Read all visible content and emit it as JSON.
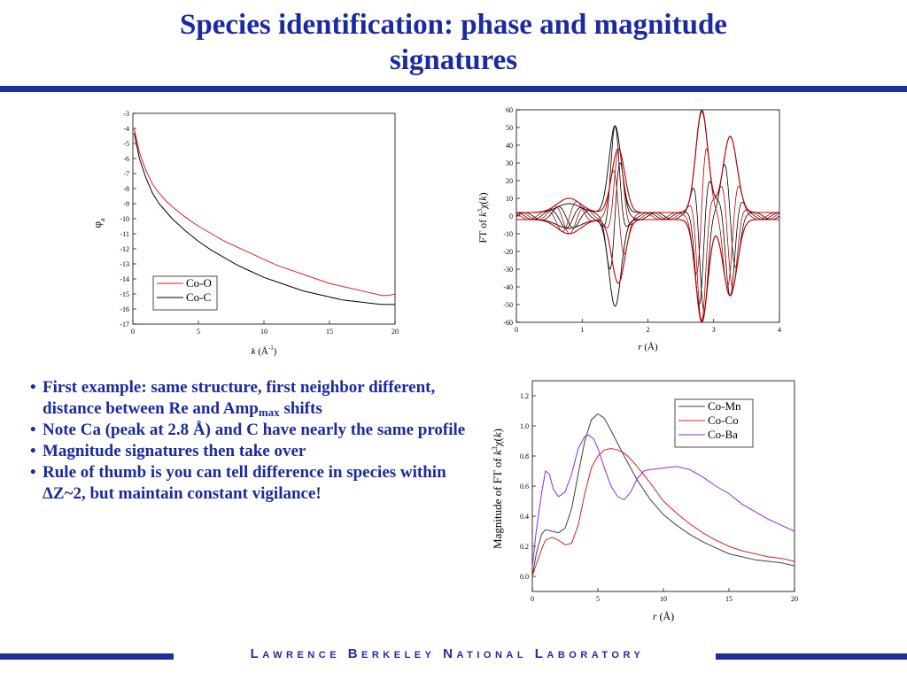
{
  "slide": {
    "title_line1": "Species identification: phase and magnitude",
    "title_line2": "signatures",
    "footer": "Lawrence Berkeley National Laboratory",
    "accent_color": "#1c2f9c",
    "text_color": "#1a2aa0"
  },
  "bullets": [
    {
      "pre": "First example: same structure, first neighbor different, distance between Re and Amp",
      "sub": "max",
      "post": " shifts"
    },
    {
      "pre": "Note Ca (peak at 2.8 Å) and C have nearly the same profile",
      "sub": "",
      "post": ""
    },
    {
      "pre": "Magnitude signatures then take over",
      "sub": "",
      "post": ""
    },
    {
      "pre": "Rule of thumb is you can tell difference in species within ",
      "sym": "Δ",
      "post": "Z~2, but maintain constant vigilance!"
    }
  ],
  "chart_data": [
    {
      "id": "phase",
      "type": "line",
      "xlabel_italic": "k",
      "xlabel_rest": " (Å",
      "xlabel_sup": "-1",
      "xlabel_close": ")",
      "ylabel_main": "φ",
      "ylabel_sub": "a",
      "xlim": [
        0,
        20
      ],
      "ylim": [
        -17,
        -3
      ],
      "xticks": [
        "0",
        "5",
        "10",
        "15",
        "20"
      ],
      "yticks": [
        "-3",
        "-4",
        "-5",
        "-6",
        "-7",
        "-8",
        "-9",
        "-10",
        "-11",
        "-12",
        "-13",
        "-14",
        "-15",
        "-16",
        "-17"
      ],
      "legend_position": "bottom-right",
      "series": [
        {
          "name": "Co-O",
          "color": "#e02020",
          "x": [
            0.1,
            0.5,
            1,
            1.5,
            2,
            2.5,
            3,
            4,
            5,
            6,
            7,
            8,
            9,
            10,
            11,
            12,
            13,
            14,
            15,
            16,
            17,
            18,
            19,
            19.5,
            20
          ],
          "y": [
            -4.0,
            -5.6,
            -6.8,
            -7.7,
            -8.3,
            -8.8,
            -9.2,
            -9.9,
            -10.5,
            -11.0,
            -11.5,
            -11.9,
            -12.3,
            -12.7,
            -13.1,
            -13.4,
            -13.7,
            -14.0,
            -14.3,
            -14.5,
            -14.7,
            -14.9,
            -15.1,
            -15.1,
            -15.0
          ]
        },
        {
          "name": "Co-C",
          "color": "#000000",
          "x": [
            0.1,
            0.5,
            1,
            1.5,
            2,
            2.5,
            3,
            4,
            5,
            6,
            7,
            8,
            9,
            10,
            11,
            12,
            13,
            14,
            15,
            16,
            17,
            18,
            19,
            19.5,
            20
          ],
          "y": [
            -4.3,
            -6.0,
            -7.3,
            -8.3,
            -9.0,
            -9.5,
            -10.0,
            -10.8,
            -11.5,
            -12.1,
            -12.6,
            -13.1,
            -13.5,
            -13.9,
            -14.2,
            -14.5,
            -14.8,
            -15.0,
            -15.2,
            -15.4,
            -15.5,
            -15.6,
            -15.7,
            -15.7,
            -15.7
          ]
        }
      ]
    },
    {
      "id": "ft",
      "type": "line",
      "xlabel_italic": "r",
      "xlabel_rest": " (Å)",
      "ylabel_prefix": "FT of ",
      "ylabel_italic": "k",
      "ylabel_sup": "3",
      "ylabel_rest": "χ(",
      "ylabel_italic2": "k",
      "ylabel_close": ")",
      "xlim": [
        0,
        4
      ],
      "ylim": [
        -60,
        60
      ],
      "xticks": [
        "0",
        "1",
        "2",
        "3",
        "4"
      ],
      "yticks": [
        "60",
        "50",
        "40",
        "30",
        "20",
        "10",
        "0",
        "-10",
        "-20",
        "-30",
        "-40",
        "-50",
        "-60"
      ],
      "series": [
        {
          "name": "",
          "color": "#000000",
          "kind": "black",
          "peaks": [
            {
              "c": 0.8,
              "a": 5,
              "w": 0.25
            },
            {
              "c": 1.5,
              "a": 49,
              "w": 0.13
            },
            {
              "c": 2.82,
              "a": 57,
              "w": 0.13
            },
            {
              "c": 3.25,
              "a": 43,
              "w": 0.15
            }
          ]
        },
        {
          "name": "",
          "color": "#c00000",
          "kind": "red",
          "peaks": [
            {
              "c": 0.8,
              "a": 8,
              "w": 0.25
            },
            {
              "c": 1.55,
              "a": 36,
              "w": 0.14
            },
            {
              "c": 2.82,
              "a": 58,
              "w": 0.13
            },
            {
              "c": 3.25,
              "a": 43,
              "w": 0.15
            }
          ]
        }
      ]
    },
    {
      "id": "magnitude",
      "type": "line",
      "xlabel_italic": "r",
      "xlabel_rest": " (Å)",
      "ylabel_prefix": "Magnitude of FT of ",
      "ylabel_italic": "k",
      "ylabel_sup": "3",
      "ylabel_rest": "χ(",
      "ylabel_italic2": "k",
      "ylabel_close": ")",
      "xlim": [
        0,
        20
      ],
      "ylim": [
        -0.1,
        1.3
      ],
      "xticks": [
        "0",
        "5",
        "10",
        "15",
        "20"
      ],
      "yticks": [
        "1.2",
        "1.0",
        "0.8",
        "0.6",
        "0.4",
        "0.2",
        "0.0"
      ],
      "legend_position": "top-right",
      "series": [
        {
          "name": "Co-Mn",
          "color": "#404040",
          "x": [
            0,
            0.3,
            0.7,
            1,
            1.5,
            2,
            2.5,
            3,
            3.5,
            4,
            4.5,
            5,
            5.5,
            6,
            7,
            8,
            9,
            10,
            11,
            12,
            13,
            14,
            15,
            16,
            17,
            18,
            19,
            20
          ],
          "y": [
            0.0,
            0.15,
            0.28,
            0.31,
            0.3,
            0.29,
            0.32,
            0.45,
            0.68,
            0.9,
            1.04,
            1.08,
            1.05,
            0.97,
            0.8,
            0.64,
            0.51,
            0.41,
            0.34,
            0.28,
            0.23,
            0.19,
            0.15,
            0.13,
            0.11,
            0.1,
            0.09,
            0.07
          ]
        },
        {
          "name": "Co-Co",
          "color": "#e02020",
          "x": [
            0,
            0.3,
            0.7,
            1,
            1.5,
            2,
            2.5,
            3,
            3.5,
            4,
            4.5,
            5,
            5.5,
            6,
            6.5,
            7,
            7.5,
            8,
            9,
            10,
            11,
            12,
            13,
            14,
            15,
            16,
            17,
            18,
            19,
            20
          ],
          "y": [
            0.0,
            0.08,
            0.18,
            0.24,
            0.26,
            0.24,
            0.21,
            0.22,
            0.34,
            0.55,
            0.72,
            0.8,
            0.84,
            0.85,
            0.84,
            0.82,
            0.78,
            0.73,
            0.62,
            0.5,
            0.42,
            0.35,
            0.29,
            0.24,
            0.2,
            0.17,
            0.15,
            0.13,
            0.12,
            0.1
          ]
        },
        {
          "name": "Co-Ba",
          "color": "#8a2be2",
          "x": [
            0,
            0.3,
            0.7,
            1,
            1.3,
            1.6,
            2,
            2.5,
            3,
            3.5,
            4,
            4.3,
            4.7,
            5,
            5.5,
            6,
            6.5,
            7,
            7.5,
            8,
            8.5,
            9,
            10,
            11,
            12,
            13,
            14,
            15,
            16,
            17,
            18,
            19,
            20
          ],
          "y": [
            0.06,
            0.3,
            0.55,
            0.7,
            0.68,
            0.58,
            0.53,
            0.56,
            0.68,
            0.85,
            0.93,
            0.94,
            0.91,
            0.85,
            0.72,
            0.6,
            0.53,
            0.51,
            0.56,
            0.65,
            0.7,
            0.71,
            0.72,
            0.73,
            0.71,
            0.66,
            0.6,
            0.55,
            0.48,
            0.43,
            0.38,
            0.34,
            0.3
          ]
        }
      ]
    }
  ]
}
